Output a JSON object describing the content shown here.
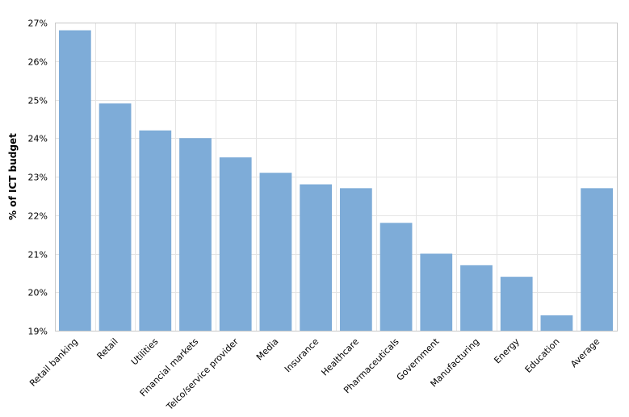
{
  "chart_data": {
    "type": "bar",
    "title": "",
    "xlabel": "",
    "ylabel": "% of ICT budget",
    "categories": [
      "Retail banking",
      "Retail",
      "Utilities",
      "Financial markets",
      "Telco/service provider",
      "Media",
      "Insurance",
      "Healthcare",
      "Pharmaceuticals",
      "Government",
      "Manufacturing",
      "Energy",
      "Education",
      "Average"
    ],
    "values": [
      26.8,
      24.9,
      24.2,
      24.0,
      23.5,
      23.1,
      22.8,
      22.7,
      21.8,
      21.0,
      20.7,
      20.4,
      19.4,
      22.7
    ],
    "ylim": [
      19,
      27
    ],
    "yticks": [
      19,
      20,
      21,
      22,
      23,
      24,
      25,
      26,
      27
    ],
    "ytick_labels": [
      "19%",
      "20%",
      "21%",
      "22%",
      "23%",
      "24%",
      "25%",
      "26%",
      "27%"
    ],
    "grid": true,
    "legend": "none",
    "bar_color": "#7eacd8"
  }
}
